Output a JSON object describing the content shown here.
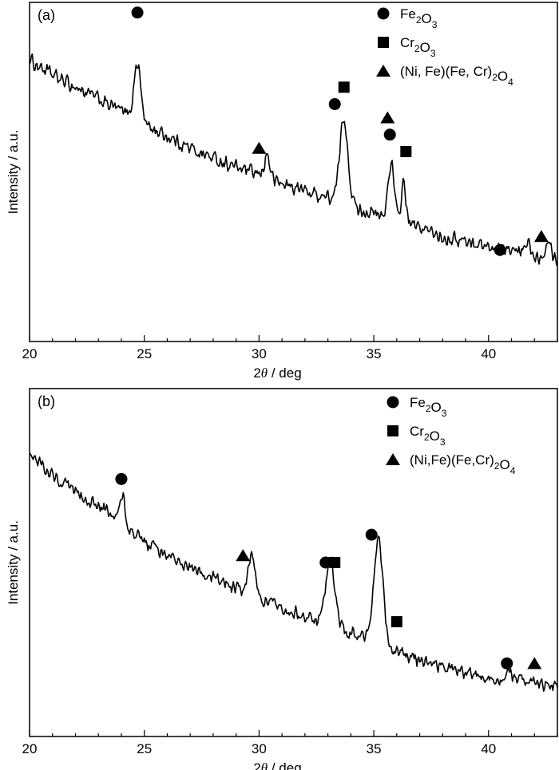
{
  "chart_data": [
    {
      "type": "line",
      "panel_label": "(a)",
      "xlabel": {
        "prefix": "2",
        "symbol": "θ",
        "suffix": " / deg"
      },
      "ylabel": "Intensity / a.u.",
      "xlim": [
        20,
        43
      ],
      "ylim": [
        0,
        100
      ],
      "xticks": [
        20,
        25,
        30,
        35,
        40
      ],
      "y_tick_labels": false,
      "grid": false,
      "legend": {
        "placement": "top-right",
        "entries": [
          {
            "marker": "circle",
            "parts": [
              [
                "Fe",
                ""
              ],
              [
                "2",
                "sub"
              ],
              [
                "O",
                ""
              ],
              [
                "3",
                "sub"
              ]
            ]
          },
          {
            "marker": "square",
            "parts": [
              [
                "Cr",
                ""
              ],
              [
                "2",
                "sub"
              ],
              [
                "O",
                ""
              ],
              [
                "3",
                "sub"
              ]
            ]
          },
          {
            "marker": "triangle",
            "parts": [
              [
                "(Ni, Fe)(Fe, Cr)",
                ""
              ],
              [
                "2",
                "sub"
              ],
              [
                "O",
                ""
              ],
              [
                "4",
                "sub"
              ]
            ]
          }
        ]
      },
      "baseline": [
        [
          20.0,
          83
        ],
        [
          21.0,
          78.5
        ],
        [
          22.0,
          75
        ],
        [
          23.0,
          71.5
        ],
        [
          24.0,
          68
        ],
        [
          25.0,
          64
        ],
        [
          26.0,
          60.5
        ],
        [
          27.0,
          57
        ],
        [
          28.0,
          54
        ],
        [
          29.0,
          51.5
        ],
        [
          30.0,
          49
        ],
        [
          31.0,
          46.5
        ],
        [
          32.0,
          44.5
        ],
        [
          33.0,
          42.5
        ],
        [
          34.0,
          40
        ],
        [
          35.0,
          37.5
        ],
        [
          36.0,
          35.5
        ],
        [
          37.0,
          33.5
        ],
        [
          38.0,
          31
        ],
        [
          39.0,
          29.5
        ],
        [
          40.0,
          28
        ],
        [
          41.0,
          26.5
        ],
        [
          42.0,
          25.5
        ],
        [
          43.0,
          24.5
        ]
      ],
      "peaks": [
        {
          "x": 24.7,
          "height": 17,
          "width": 0.15
        },
        {
          "x": 30.35,
          "height": 7,
          "width": 0.12
        },
        {
          "x": 33.7,
          "height": 25,
          "width": 0.18
        },
        {
          "x": 35.75,
          "height": 17,
          "width": 0.13
        },
        {
          "x": 36.3,
          "height": 12,
          "width": 0.1
        },
        {
          "x": 41.7,
          "height": 4,
          "width": 0.1
        },
        {
          "x": 42.6,
          "height": 6,
          "width": 0.12
        }
      ],
      "noise_amplitude": 2.6,
      "markers": [
        {
          "type": "circle",
          "x": 24.7,
          "y": 97
        },
        {
          "type": "triangle",
          "x": 30.0,
          "y": 57
        },
        {
          "type": "circle",
          "x": 33.3,
          "y": 70
        },
        {
          "type": "square",
          "x": 33.7,
          "y": 75
        },
        {
          "type": "triangle",
          "x": 35.6,
          "y": 66
        },
        {
          "type": "circle",
          "x": 35.7,
          "y": 61
        },
        {
          "type": "square",
          "x": 36.4,
          "y": 56
        },
        {
          "type": "circle",
          "x": 40.5,
          "y": 27
        },
        {
          "type": "triangle",
          "x": 42.3,
          "y": 31
        }
      ]
    },
    {
      "type": "line",
      "panel_label": "(b)",
      "xlabel": {
        "prefix": "2",
        "symbol": "θ",
        "suffix": " / deg"
      },
      "ylabel": "Intensity / a.u.",
      "xlim": [
        20,
        43
      ],
      "ylim": [
        0,
        100
      ],
      "xticks": [
        20,
        25,
        30,
        35,
        40
      ],
      "y_tick_labels": false,
      "grid": false,
      "legend": {
        "placement": "top-right",
        "entries": [
          {
            "marker": "circle",
            "parts": [
              [
                "Fe",
                ""
              ],
              [
                "2",
                "sub"
              ],
              [
                "O",
                ""
              ],
              [
                "3",
                "sub"
              ]
            ]
          },
          {
            "marker": "square",
            "parts": [
              [
                "Cr",
                ""
              ],
              [
                "2",
                "sub"
              ],
              [
                "O",
                ""
              ],
              [
                "3",
                "sub"
              ]
            ]
          },
          {
            "marker": "triangle",
            "parts": [
              [
                "(Ni,Fe)(Fe,Cr)",
                ""
              ],
              [
                "2",
                "sub"
              ],
              [
                "O",
                ""
              ],
              [
                "4",
                "sub"
              ]
            ]
          }
        ]
      },
      "baseline": [
        [
          20.0,
          82
        ],
        [
          21.0,
          75
        ],
        [
          22.0,
          70
        ],
        [
          23.0,
          66
        ],
        [
          24.0,
          62
        ],
        [
          25.0,
          56
        ],
        [
          26.0,
          52
        ],
        [
          27.0,
          48.5
        ],
        [
          28.0,
          45.5
        ],
        [
          29.0,
          42.5
        ],
        [
          30.0,
          40
        ],
        [
          31.0,
          37
        ],
        [
          32.0,
          34.5
        ],
        [
          33.0,
          32
        ],
        [
          34.0,
          29.5
        ],
        [
          35.0,
          27
        ],
        [
          36.0,
          24.5
        ],
        [
          37.0,
          22
        ],
        [
          38.0,
          20
        ],
        [
          39.0,
          18.5
        ],
        [
          40.0,
          17
        ],
        [
          41.0,
          16
        ],
        [
          42.0,
          15
        ],
        [
          43.0,
          15
        ]
      ],
      "peaks": [
        {
          "x": 24.05,
          "height": 8,
          "width": 0.1
        },
        {
          "x": 29.7,
          "height": 12,
          "width": 0.15
        },
        {
          "x": 33.1,
          "height": 19,
          "width": 0.2
        },
        {
          "x": 35.2,
          "height": 30,
          "width": 0.2
        },
        {
          "x": 40.9,
          "height": 3,
          "width": 0.1
        }
      ],
      "noise_amplitude": 2.4,
      "markers": [
        {
          "type": "circle",
          "x": 24.0,
          "y": 74
        },
        {
          "type": "triangle",
          "x": 29.3,
          "y": 52
        },
        {
          "type": "circle",
          "x": 32.9,
          "y": 50
        },
        {
          "type": "square",
          "x": 33.3,
          "y": 50
        },
        {
          "type": "circle",
          "x": 34.9,
          "y": 58
        },
        {
          "type": "square",
          "x": 36.0,
          "y": 33
        },
        {
          "type": "circle",
          "x": 40.8,
          "y": 21
        },
        {
          "type": "triangle",
          "x": 42.0,
          "y": 21
        }
      ]
    }
  ]
}
